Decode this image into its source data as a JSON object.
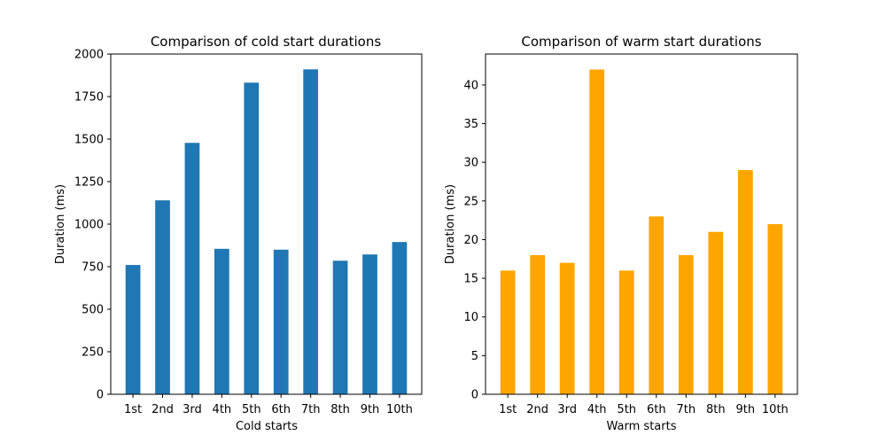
{
  "chart_data": [
    {
      "type": "bar",
      "title": "Comparison of cold start durations",
      "xlabel": "Cold starts",
      "ylabel": "Duration (ms)",
      "categories": [
        "1st",
        "2nd",
        "3rd",
        "4th",
        "5th",
        "6th",
        "7th",
        "8th",
        "9th",
        "10th"
      ],
      "values": [
        760,
        1140,
        1478,
        855,
        1832,
        850,
        1910,
        785,
        822,
        895
      ],
      "ylim": [
        0,
        2000
      ],
      "yticks": [
        "0",
        "250",
        "500",
        "750",
        "1000",
        "1250",
        "1500",
        "1750",
        "2000"
      ],
      "color": "#1f77b4",
      "grid": false
    },
    {
      "type": "bar",
      "title": "Comparison of warm start durations",
      "xlabel": "Warm starts",
      "ylabel": "Duration (ms)",
      "categories": [
        "1st",
        "2nd",
        "3rd",
        "4th",
        "5th",
        "6th",
        "7th",
        "8th",
        "9th",
        "10th"
      ],
      "values": [
        16,
        18,
        17,
        42,
        16,
        23,
        18,
        21,
        29,
        22
      ],
      "ylim": [
        0,
        44
      ],
      "yticks": [
        "0",
        "5",
        "10",
        "15",
        "20",
        "25",
        "30",
        "35",
        "40"
      ],
      "color": "#ffa500",
      "grid": false
    }
  ]
}
